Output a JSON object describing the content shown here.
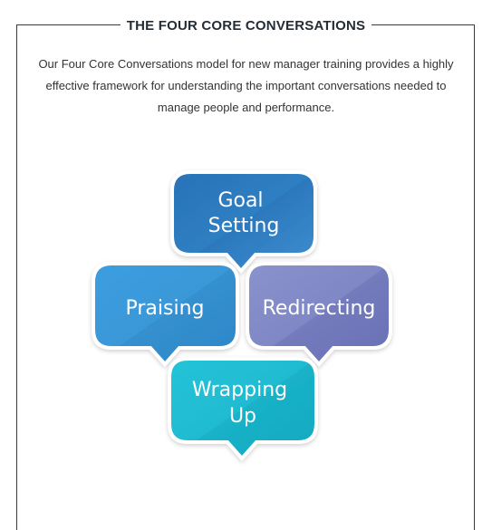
{
  "section": {
    "title": "THE FOUR CORE CONVERSATIONS",
    "description": "Our Four Core Conversations model for new manager training provides a highly effective framework for understanding the important conversations needed to manage people and performance."
  },
  "diagram": {
    "bubbles": [
      {
        "id": "goal-setting",
        "lines": [
          "Goal",
          "Setting"
        ],
        "color": "#2f7fc2"
      },
      {
        "id": "praising",
        "lines": [
          "Praising"
        ],
        "color": "#3a9ad9"
      },
      {
        "id": "redirecting",
        "lines": [
          "Redirecting"
        ],
        "color": "#7e84c4"
      },
      {
        "id": "wrapping-up",
        "lines": [
          "Wrapping",
          "Up"
        ],
        "color": "#1fbcd2"
      }
    ]
  }
}
